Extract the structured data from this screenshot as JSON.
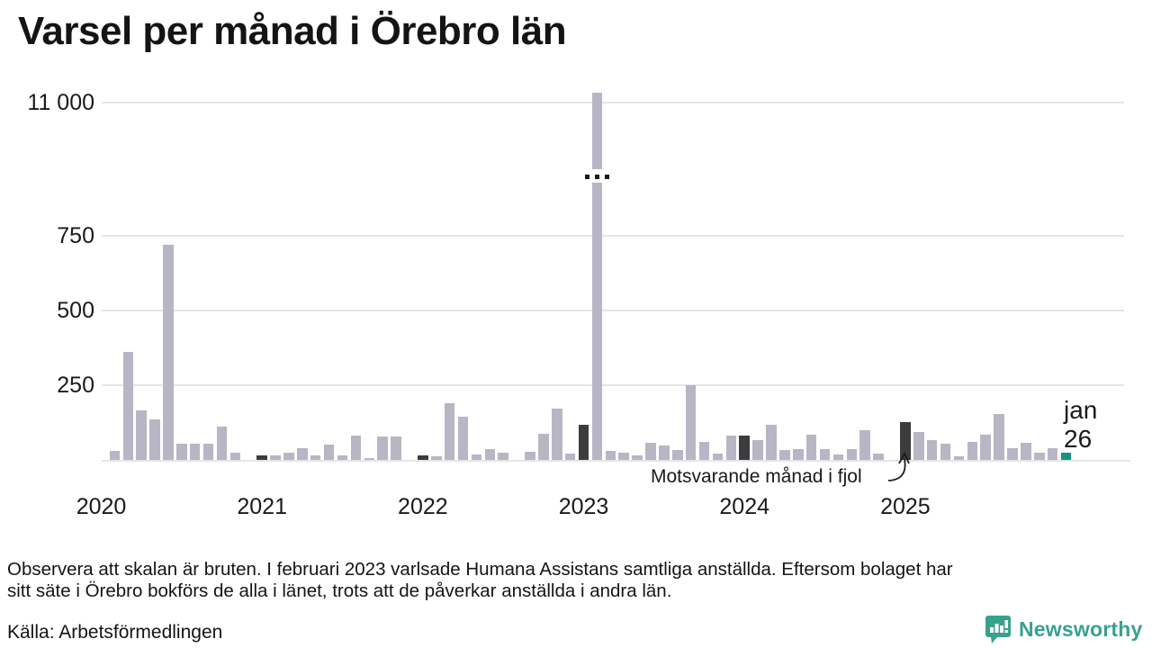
{
  "title": "Varsel per månad i Örebro län",
  "chart_data": {
    "type": "bar",
    "title": "Varsel per månad i Örebro län",
    "x_start": "jan 2020",
    "x_end": "jan 2026",
    "broken_axis": true,
    "broken_bar": {
      "month": "feb 2023",
      "value": 11000
    },
    "values_by_year": {
      "2020": [
        0,
        30,
        360,
        165,
        135,
        720,
        55,
        55,
        55,
        110,
        25,
        0
      ],
      "2021": [
        15,
        14,
        24,
        40,
        14,
        52,
        14,
        82,
        4,
        77,
        77,
        0
      ],
      "2022": [
        15,
        12,
        190,
        145,
        17,
        37,
        25,
        0,
        27,
        87,
        172,
        20
      ],
      "2023": [
        117,
        11000,
        30,
        25,
        15,
        57,
        48,
        32,
        250,
        60,
        22,
        81
      ],
      "2024": [
        81,
        65,
        116,
        32,
        35,
        84,
        35,
        17,
        37,
        100,
        20,
        0
      ],
      "2025": [
        125,
        92,
        66,
        54,
        13,
        59,
        84,
        155,
        40,
        57,
        23,
        40
      ],
      "2026": [
        23
      ]
    },
    "y_ticks": [
      {
        "label": "250",
        "value": 250
      },
      {
        "label": "500",
        "value": 500
      },
      {
        "label": "750",
        "value": 750
      },
      {
        "label": "11 000",
        "value": 11000,
        "broken_position": true
      }
    ],
    "x_ticks": [
      "2020",
      "2021",
      "2022",
      "2023",
      "2024",
      "2025"
    ],
    "highlight_rule": "january bars dark",
    "legend_position": "none",
    "grid": true
  },
  "annotation": {
    "text": "Motsvarande månad i fjol"
  },
  "latest_label": {
    "line1": "jan",
    "line2": "26"
  },
  "footnote": {
    "line1": "Observera att skalan är bruten. I februari 2023 varlsade Humana Assistans samtliga anställda. Eftersom bolaget har",
    "line2": "sitt säte i Örebro bokförs de alla i länet, trots att de påverkar anställda i andra län."
  },
  "source": {
    "label": "Källa: Arbetsförmedlingen"
  },
  "brand": {
    "name": "Newsworthy"
  },
  "colors": {
    "bar": "#b8b6c4",
    "bar_dark": "#3c3c3e",
    "bar_teal": "#14947f",
    "grid": "#e5e4ea",
    "text": "#1a1a1a",
    "brand_teal": "#38a18e"
  }
}
